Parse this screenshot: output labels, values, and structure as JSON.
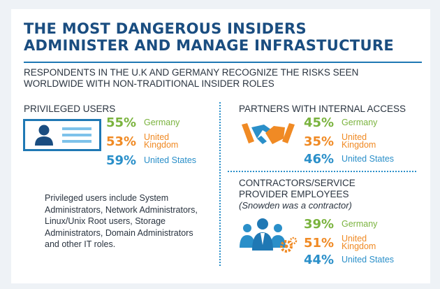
{
  "title_line1": "THE MOST DANGEROUS INSIDERS",
  "title_line2": "ADMINISTER AND MANAGE INFRASTUCTURE",
  "subtitle_line1": "RESPONDENTS IN THE U.K AND GERMANY RECOGNIZE THE RISKS SEEN",
  "subtitle_line2": "WORLDWIDE WITH NON-TRADITIONAL INSIDER ROLES",
  "colors": {
    "germany": "#7ab33e",
    "uk": "#f08a24",
    "us": "#2a8fc9",
    "title": "#1a4d80"
  },
  "privileged": {
    "title": "PRIVILEGED USERS",
    "icon": "id-card-icon",
    "stats": [
      {
        "pct": "55%",
        "label": "Germany"
      },
      {
        "pct": "53%",
        "label_line1": "United",
        "label_line2": "Kingdom"
      },
      {
        "pct": "59%",
        "label": "United States"
      }
    ],
    "desc_lines": [
      "Privileged users include System",
      "Administrators, Network Administrators,",
      "Linux/Unix Root users, Storage",
      "Administrators, Domain Administrators",
      "and other IT roles."
    ]
  },
  "partners": {
    "title": "PARTNERS WITH INTERNAL ACCESS",
    "icon": "handshake-icon",
    "stats": [
      {
        "pct": "45%",
        "label": "Germany"
      },
      {
        "pct": "35%",
        "label_line1": "United",
        "label_line2": "Kingdom"
      },
      {
        "pct": "46%",
        "label": "United States"
      }
    ]
  },
  "contractors": {
    "title_line1": "CONTRACTORS/SERVICE",
    "title_line2": "PROVIDER EMPLOYEES",
    "note": "(Snowden was a contractor)",
    "icon": "people-gears-icon",
    "stats": [
      {
        "pct": "39%",
        "label": "Germany"
      },
      {
        "pct": "51%",
        "label_line1": "United",
        "label_line2": "Kingdom"
      },
      {
        "pct": "44%",
        "label": "United States"
      }
    ]
  }
}
